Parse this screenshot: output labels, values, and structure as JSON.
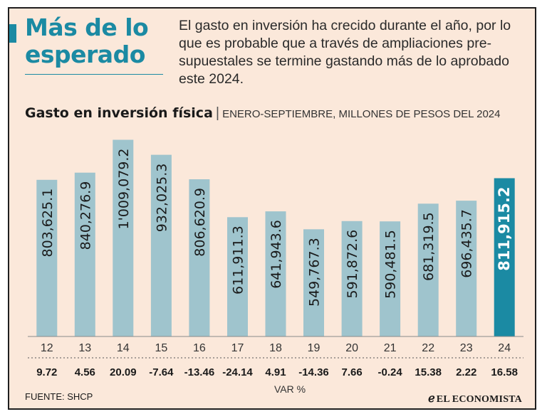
{
  "headline": "Más de lo esperado",
  "intro": "El gasto en inversión ha crecido durante el año, por lo que es probable que a través de ampliaciones pre-supuestales se termine gastando más de lo aprobado este 2024.",
  "source": "FUENTE: SHCP",
  "brand": {
    "mark": "ℯ",
    "name": "EL ECONOMISTA"
  },
  "colors": {
    "bar": "#9fc4cd",
    "highlight": "#1b8aa3",
    "background": "#fbe8da",
    "accent": "#1b8aa3"
  },
  "chart_data": {
    "type": "bar",
    "title": "Gasto en inversión física",
    "subtitle": "ENERO-SEPTIEMBRE, MILLONES DE PESOS DEL 2024",
    "categories": [
      "12",
      "13",
      "14",
      "15",
      "16",
      "17",
      "18",
      "19",
      "20",
      "21",
      "22",
      "23",
      "24"
    ],
    "values": [
      803625.1,
      840276.9,
      1009079.2,
      932025.3,
      806620.9,
      611911.3,
      641943.6,
      549767.3,
      591872.6,
      590481.5,
      681319.5,
      696435.7,
      811915.2
    ],
    "value_labels": [
      "803,625.1",
      "840,276.9",
      "1'009,079.2",
      "932,025.3",
      "806,620.9",
      "611,911.3",
      "641,943.6",
      "549,767.3",
      "591,872.6",
      "590,481.5",
      "681,319.5",
      "696,435.7",
      "811,915.2"
    ],
    "highlight_index": 12,
    "ylim": [
      0,
      1040000
    ],
    "var_label": "VAR %",
    "var_values": [
      "9.72",
      "4.56",
      "20.09",
      "-7.64",
      "-13.46",
      "-24.14",
      "4.91",
      "-14.36",
      "7.66",
      "-0.24",
      "15.38",
      "2.22",
      "16.58"
    ]
  }
}
